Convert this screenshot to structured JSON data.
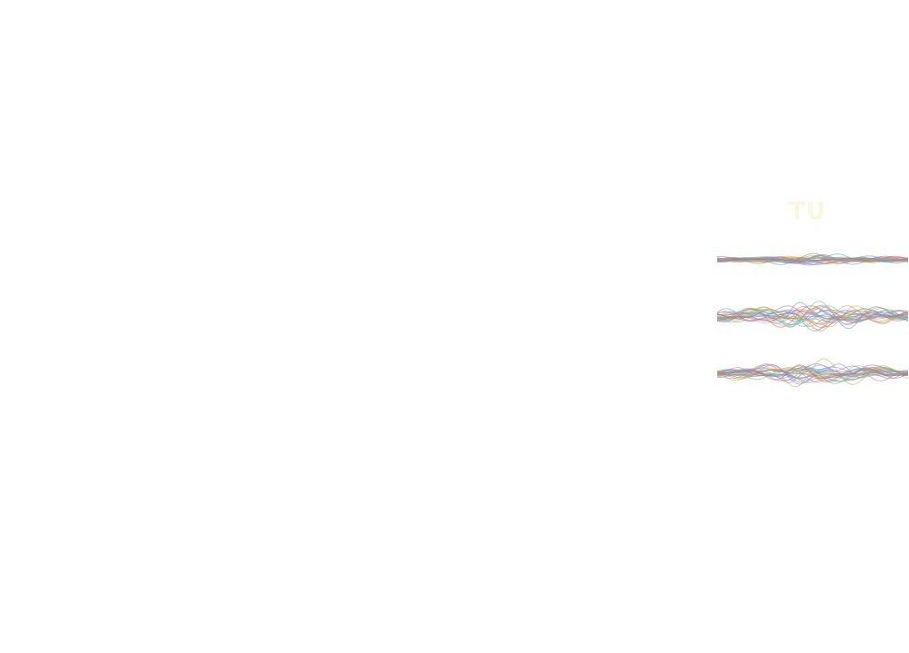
{
  "watermark": {
    "text": "TU"
  },
  "graphic": {
    "bands": 3,
    "line_colors": [
      "#5b8def",
      "#e59c5a",
      "#6fc07a",
      "#d9605e",
      "#9a7fd6",
      "#56c3d6",
      "#c8a040"
    ]
  }
}
